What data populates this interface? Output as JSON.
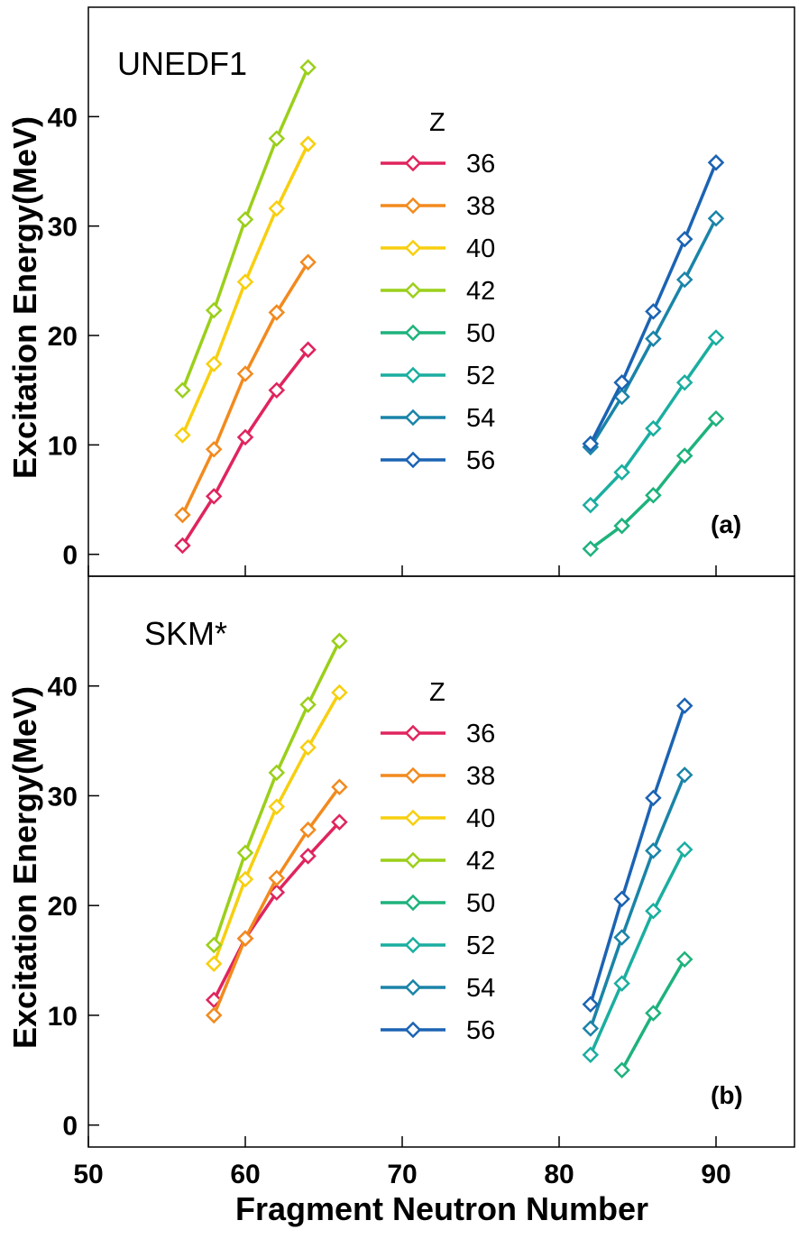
{
  "chart_data": {
    "type": "line",
    "xlabel": "Fragment Neutron Number",
    "ylabel": "Excitation Energy(MeV)",
    "xlim": [
      50,
      95
    ],
    "x_ticks": [
      50,
      60,
      70,
      80,
      90
    ],
    "y_ticks": [
      0,
      10,
      20,
      30,
      40
    ],
    "legend_title": "Z",
    "legend_position": "center",
    "panels": [
      {
        "id": "a",
        "title": "UNEDF1",
        "tag": "(a)",
        "ylim": [
          -2,
          50
        ],
        "series": [
          {
            "name": "36",
            "color": "#e0245e",
            "x": [
              56,
              58,
              60,
              62,
              64
            ],
            "y": [
              0.8,
              5.3,
              10.7,
              15.0,
              18.7
            ]
          },
          {
            "name": "38",
            "color": "#f28a1e",
            "x": [
              56,
              58,
              60,
              62,
              64
            ],
            "y": [
              3.6,
              9.6,
              16.5,
              22.1,
              26.7
            ]
          },
          {
            "name": "40",
            "color": "#f7cf0f",
            "x": [
              56,
              58,
              60,
              62,
              64
            ],
            "y": [
              10.9,
              17.4,
              24.9,
              31.6,
              37.5
            ]
          },
          {
            "name": "42",
            "color": "#9bcf1a",
            "x": [
              56,
              58,
              60,
              62,
              64
            ],
            "y": [
              15.0,
              22.3,
              30.6,
              38.0,
              44.5
            ]
          },
          {
            "name": "50",
            "color": "#1eb27c",
            "x": [
              82,
              84,
              86,
              88,
              90
            ],
            "y": [
              0.5,
              2.6,
              5.4,
              9.0,
              12.4
            ]
          },
          {
            "name": "52",
            "color": "#1aaea0",
            "x": [
              82,
              84,
              86,
              88,
              90
            ],
            "y": [
              4.5,
              7.5,
              11.5,
              15.7,
              19.8
            ]
          },
          {
            "name": "54",
            "color": "#1a84a8",
            "x": [
              82,
              84,
              86,
              88,
              90
            ],
            "y": [
              9.8,
              14.4,
              19.7,
              25.1,
              30.7
            ]
          },
          {
            "name": "56",
            "color": "#1b63b3",
            "x": [
              82,
              84,
              86,
              88,
              90
            ],
            "y": [
              10.1,
              15.7,
              22.2,
              28.8,
              35.8
            ]
          }
        ]
      },
      {
        "id": "b",
        "title": "SKM*",
        "tag": "(b)",
        "ylim": [
          -2,
          50
        ],
        "series": [
          {
            "name": "36",
            "color": "#e0245e",
            "x": [
              58,
              60,
              62,
              64,
              66
            ],
            "y": [
              11.4,
              17.0,
              21.2,
              24.5,
              27.6
            ]
          },
          {
            "name": "38",
            "color": "#f28a1e",
            "x": [
              58,
              60,
              62,
              64,
              66
            ],
            "y": [
              10.0,
              17.0,
              22.5,
              26.9,
              30.8
            ]
          },
          {
            "name": "40",
            "color": "#f7cf0f",
            "x": [
              58,
              60,
              62,
              64,
              66
            ],
            "y": [
              14.7,
              22.4,
              29.0,
              34.4,
              39.4
            ]
          },
          {
            "name": "42",
            "color": "#9bcf1a",
            "x": [
              58,
              60,
              62,
              64,
              66
            ],
            "y": [
              16.4,
              24.8,
              32.1,
              38.3,
              44.1
            ]
          },
          {
            "name": "50",
            "color": "#1eb27c",
            "x": [
              84,
              86,
              88
            ],
            "y": [
              5.0,
              10.2,
              15.1
            ]
          },
          {
            "name": "52",
            "color": "#1aaea0",
            "x": [
              82,
              84,
              86,
              88
            ],
            "y": [
              6.4,
              12.9,
              19.5,
              25.1
            ]
          },
          {
            "name": "54",
            "color": "#1a84a8",
            "x": [
              82,
              84,
              86,
              88
            ],
            "y": [
              8.8,
              17.1,
              25.0,
              31.9
            ]
          },
          {
            "name": "56",
            "color": "#1b63b3",
            "x": [
              82,
              84,
              86,
              88
            ],
            "y": [
              11.0,
              20.6,
              29.8,
              38.2
            ]
          }
        ]
      }
    ]
  }
}
